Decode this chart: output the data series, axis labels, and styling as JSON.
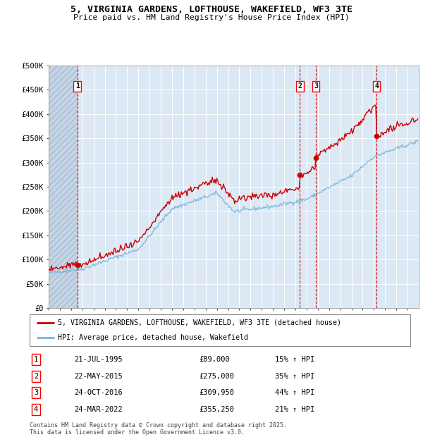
{
  "title_line1": "5, VIRGINIA GARDENS, LOFTHOUSE, WAKEFIELD, WF3 3TE",
  "title_line2": "Price paid vs. HM Land Registry's House Price Index (HPI)",
  "ylim": [
    0,
    500000
  ],
  "yticks": [
    0,
    50000,
    100000,
    150000,
    200000,
    250000,
    300000,
    350000,
    400000,
    450000,
    500000
  ],
  "ytick_labels": [
    "£0",
    "£50K",
    "£100K",
    "£150K",
    "£200K",
    "£250K",
    "£300K",
    "£350K",
    "£400K",
    "£450K",
    "£500K"
  ],
  "hpi_color": "#7ab4d8",
  "price_color": "#cc0000",
  "vline_color": "#cc0000",
  "plot_bg_color": "#dce9f5",
  "transactions": [
    {
      "num": 1,
      "date_dec": 1995.55,
      "price": 89000,
      "label": "21-JUL-1995",
      "price_str": "£89,000",
      "pct": "15% ↑ HPI"
    },
    {
      "num": 2,
      "date_dec": 2015.39,
      "price": 275000,
      "label": "22-MAY-2015",
      "price_str": "£275,000",
      "pct": "35% ↑ HPI"
    },
    {
      "num": 3,
      "date_dec": 2016.82,
      "price": 309950,
      "label": "24-OCT-2016",
      "price_str": "£309,950",
      "pct": "44% ↑ HPI"
    },
    {
      "num": 4,
      "date_dec": 2022.23,
      "price": 355250,
      "label": "24-MAR-2022",
      "price_str": "£355,250",
      "pct": "21% ↑ HPI"
    }
  ],
  "legend_price_label": "5, VIRGINIA GARDENS, LOFTHOUSE, WAKEFIELD, WF3 3TE (detached house)",
  "legend_hpi_label": "HPI: Average price, detached house, Wakefield",
  "footer": "Contains HM Land Registry data © Crown copyright and database right 2025.\nThis data is licensed under the Open Government Licence v3.0.",
  "xmin": 1993.0,
  "xmax": 2026.0
}
